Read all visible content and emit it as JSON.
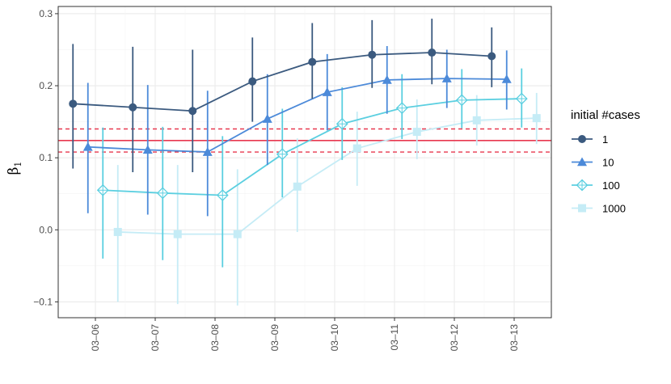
{
  "chart_data": {
    "type": "line",
    "title": "",
    "xlabel": "",
    "ylabel": "β",
    "ylabel_subscript": "1",
    "categories": [
      "03–06",
      "03–07",
      "03–08",
      "03–09",
      "03–10",
      "03–11",
      "03–12",
      "03–13"
    ],
    "ylim": [
      -0.122,
      0.31
    ],
    "y_ticks": [
      -0.1,
      0.0,
      0.1,
      0.2,
      0.3
    ],
    "y_tick_labels": [
      "−0.1",
      "0.0",
      "0.1",
      "0.2",
      "0.3"
    ],
    "grid": true,
    "legend": {
      "title": "initial #cases",
      "position": "right"
    },
    "reference_lines": {
      "solid": 0.124,
      "dashed": [
        0.108,
        0.14
      ],
      "color": "#e8384f"
    },
    "series": [
      {
        "name": "1",
        "color": "#3b5a7f",
        "marker": "circle",
        "offset": -0.375,
        "values": [
          0.175,
          0.17,
          0.165,
          0.206,
          0.233,
          0.243,
          0.246,
          0.241
        ],
        "lower": [
          0.085,
          0.08,
          0.08,
          0.15,
          0.182,
          0.197,
          0.202,
          0.198
        ],
        "upper": [
          0.258,
          0.254,
          0.25,
          0.267,
          0.287,
          0.291,
          0.293,
          0.281
        ]
      },
      {
        "name": "10",
        "color": "#4c8ad9",
        "marker": "triangle",
        "offset": -0.125,
        "values": [
          0.115,
          0.111,
          0.108,
          0.154,
          0.191,
          0.208,
          0.21,
          0.209
        ],
        "lower": [
          0.023,
          0.021,
          0.019,
          0.09,
          0.138,
          0.161,
          0.169,
          0.167
        ],
        "upper": [
          0.204,
          0.201,
          0.193,
          0.216,
          0.244,
          0.255,
          0.25,
          0.249
        ]
      },
      {
        "name": "100",
        "color": "#5bcfe0",
        "marker": "diamond",
        "offset": 0.125,
        "values": [
          0.055,
          0.051,
          0.048,
          0.105,
          0.147,
          0.169,
          0.18,
          0.182
        ],
        "lower": [
          -0.04,
          -0.042,
          -0.052,
          0.045,
          0.097,
          0.126,
          0.141,
          0.142
        ],
        "upper": [
          0.142,
          0.143,
          0.13,
          0.168,
          0.198,
          0.216,
          0.223,
          0.224
        ]
      },
      {
        "name": "1000",
        "color": "#c5ecf6",
        "marker": "square",
        "offset": 0.375,
        "values": [
          -0.003,
          -0.006,
          -0.006,
          0.06,
          0.113,
          0.136,
          0.152,
          0.155
        ],
        "lower": [
          -0.1,
          -0.103,
          -0.105,
          -0.003,
          0.061,
          0.098,
          0.117,
          0.119
        ],
        "upper": [
          0.09,
          0.09,
          0.084,
          0.127,
          0.164,
          0.181,
          0.187,
          0.19
        ]
      }
    ]
  }
}
